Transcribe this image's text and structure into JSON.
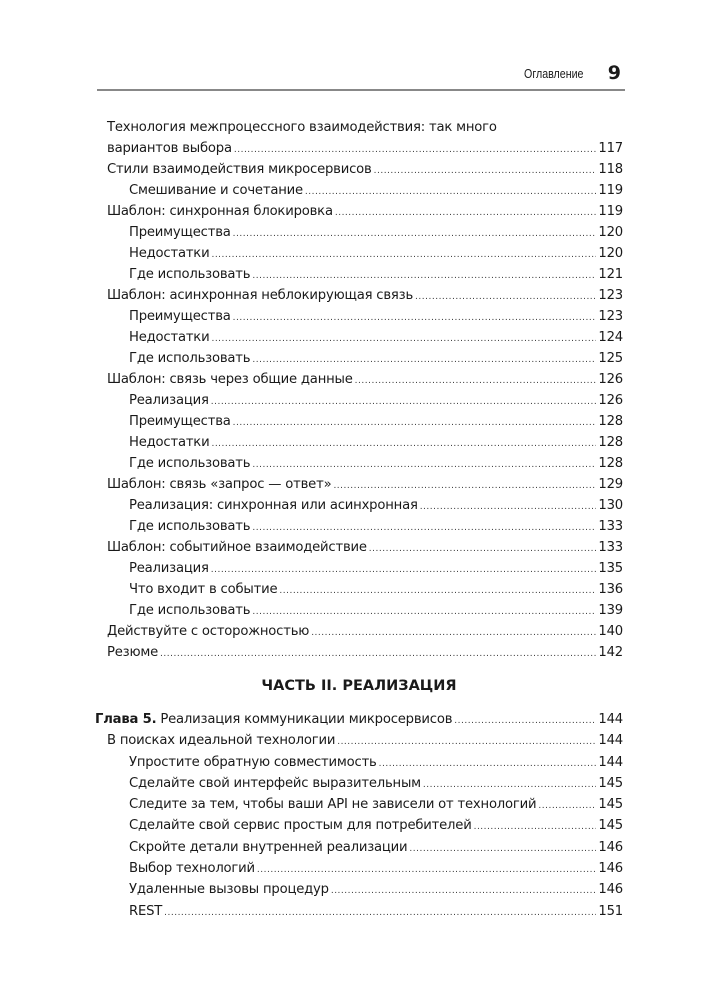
{
  "header": {
    "title": "Оглавление",
    "page_number": "9"
  },
  "toc_top": [
    {
      "level": 1,
      "text": "Технология межпроцессного взаимодействия: так много",
      "page": "",
      "continued": true
    },
    {
      "level": 1,
      "text": "вариантов выбора",
      "page": "117"
    },
    {
      "level": 1,
      "text": "Стили взаимодействия микросервисов",
      "page": "118"
    },
    {
      "level": 2,
      "text": "Смешивание и сочетание",
      "page": "119"
    },
    {
      "level": 1,
      "text": "Шаблон: синхронная блокировка",
      "page": "119"
    },
    {
      "level": 2,
      "text": "Преимущества",
      "page": "120"
    },
    {
      "level": 2,
      "text": "Недостатки",
      "page": "120"
    },
    {
      "level": 2,
      "text": "Где использовать",
      "page": "121"
    },
    {
      "level": 1,
      "text": "Шаблон: асинхронная неблокирующая связь",
      "page": "123"
    },
    {
      "level": 2,
      "text": "Преимущества",
      "page": "123"
    },
    {
      "level": 2,
      "text": "Недостатки",
      "page": "124"
    },
    {
      "level": 2,
      "text": "Где использовать",
      "page": "125"
    },
    {
      "level": 1,
      "text": "Шаблон: связь через общие данные",
      "page": "126"
    },
    {
      "level": 2,
      "text": "Реализация",
      "page": "126"
    },
    {
      "level": 2,
      "text": "Преимущества",
      "page": "128"
    },
    {
      "level": 2,
      "text": "Недостатки",
      "page": "128"
    },
    {
      "level": 2,
      "text": "Где использовать",
      "page": "128"
    },
    {
      "level": 1,
      "text": "Шаблон: связь «запрос — ответ»",
      "page": "129"
    },
    {
      "level": 2,
      "text": "Реализация: синхронная или асинхронная",
      "page": "130"
    },
    {
      "level": 2,
      "text": "Где использовать",
      "page": "133"
    },
    {
      "level": 1,
      "text": "Шаблон: событийное взаимодействие",
      "page": "133"
    },
    {
      "level": 2,
      "text": "Реализация",
      "page": "135"
    },
    {
      "level": 2,
      "text": "Что входит в событие",
      "page": "136"
    },
    {
      "level": 2,
      "text": "Где использовать",
      "page": "139"
    },
    {
      "level": 1,
      "text": "Действуйте с осторожностью",
      "page": "140"
    },
    {
      "level": 1,
      "text": "Резюме",
      "page": "142"
    }
  ],
  "part_heading": "ЧАСТЬ II. РЕАЛИЗАЦИЯ",
  "toc_bottom": [
    {
      "level": 0,
      "label": "Глава 5.",
      "text": " Реализация коммуникации микросервисов",
      "page": "144"
    },
    {
      "level": 1,
      "text": "В поисках идеальной технологии",
      "page": "144"
    },
    {
      "level": 2,
      "text": "Упростите обратную совместимость",
      "page": "144"
    },
    {
      "level": 2,
      "text": "Сделайте свой интерфейс выразительным",
      "page": "145"
    },
    {
      "level": 2,
      "text": "Следите за тем, чтобы ваши API не зависели от технологий",
      "page": "145"
    },
    {
      "level": 2,
      "text": "Сделайте свой сервис простым для потребителей",
      "page": "145"
    },
    {
      "level": 2,
      "text": "Скройте детали внутренней реализации",
      "page": "146"
    },
    {
      "level": 2,
      "text": "Выбор технологий",
      "page": "146"
    },
    {
      "level": 2,
      "text": "Удаленные вызовы процедур",
      "page": "146"
    },
    {
      "level": 2,
      "text": "REST",
      "page": "151"
    }
  ]
}
